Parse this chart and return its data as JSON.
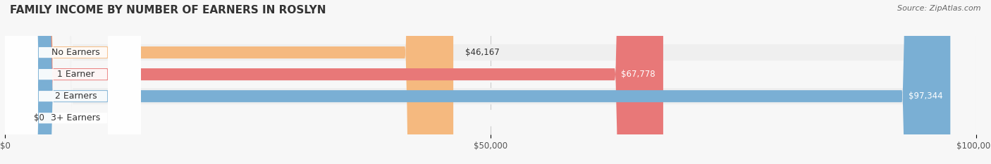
{
  "title": "FAMILY INCOME BY NUMBER OF EARNERS IN ROSLYN",
  "source": "Source: ZipAtlas.com",
  "categories": [
    "No Earners",
    "1 Earner",
    "2 Earners",
    "3+ Earners"
  ],
  "values": [
    46167,
    67778,
    97344,
    0
  ],
  "bar_colors": [
    "#f5b97f",
    "#e87878",
    "#7aafd4",
    "#c9a8d4"
  ],
  "label_colors": [
    "#000000",
    "#ffffff",
    "#ffffff",
    "#000000"
  ],
  "row_bg_colors": [
    "#efefef",
    "#f7f7f7",
    "#efefef",
    "#f7f7f7"
  ],
  "xlim": [
    0,
    100000
  ],
  "xtick_values": [
    0,
    50000,
    100000
  ],
  "xtick_labels": [
    "$0",
    "$50,000",
    "$100,000"
  ],
  "title_fontsize": 11,
  "bar_height": 0.55,
  "value_labels": [
    "$46,167",
    "$67,778",
    "$97,344",
    "$0"
  ]
}
